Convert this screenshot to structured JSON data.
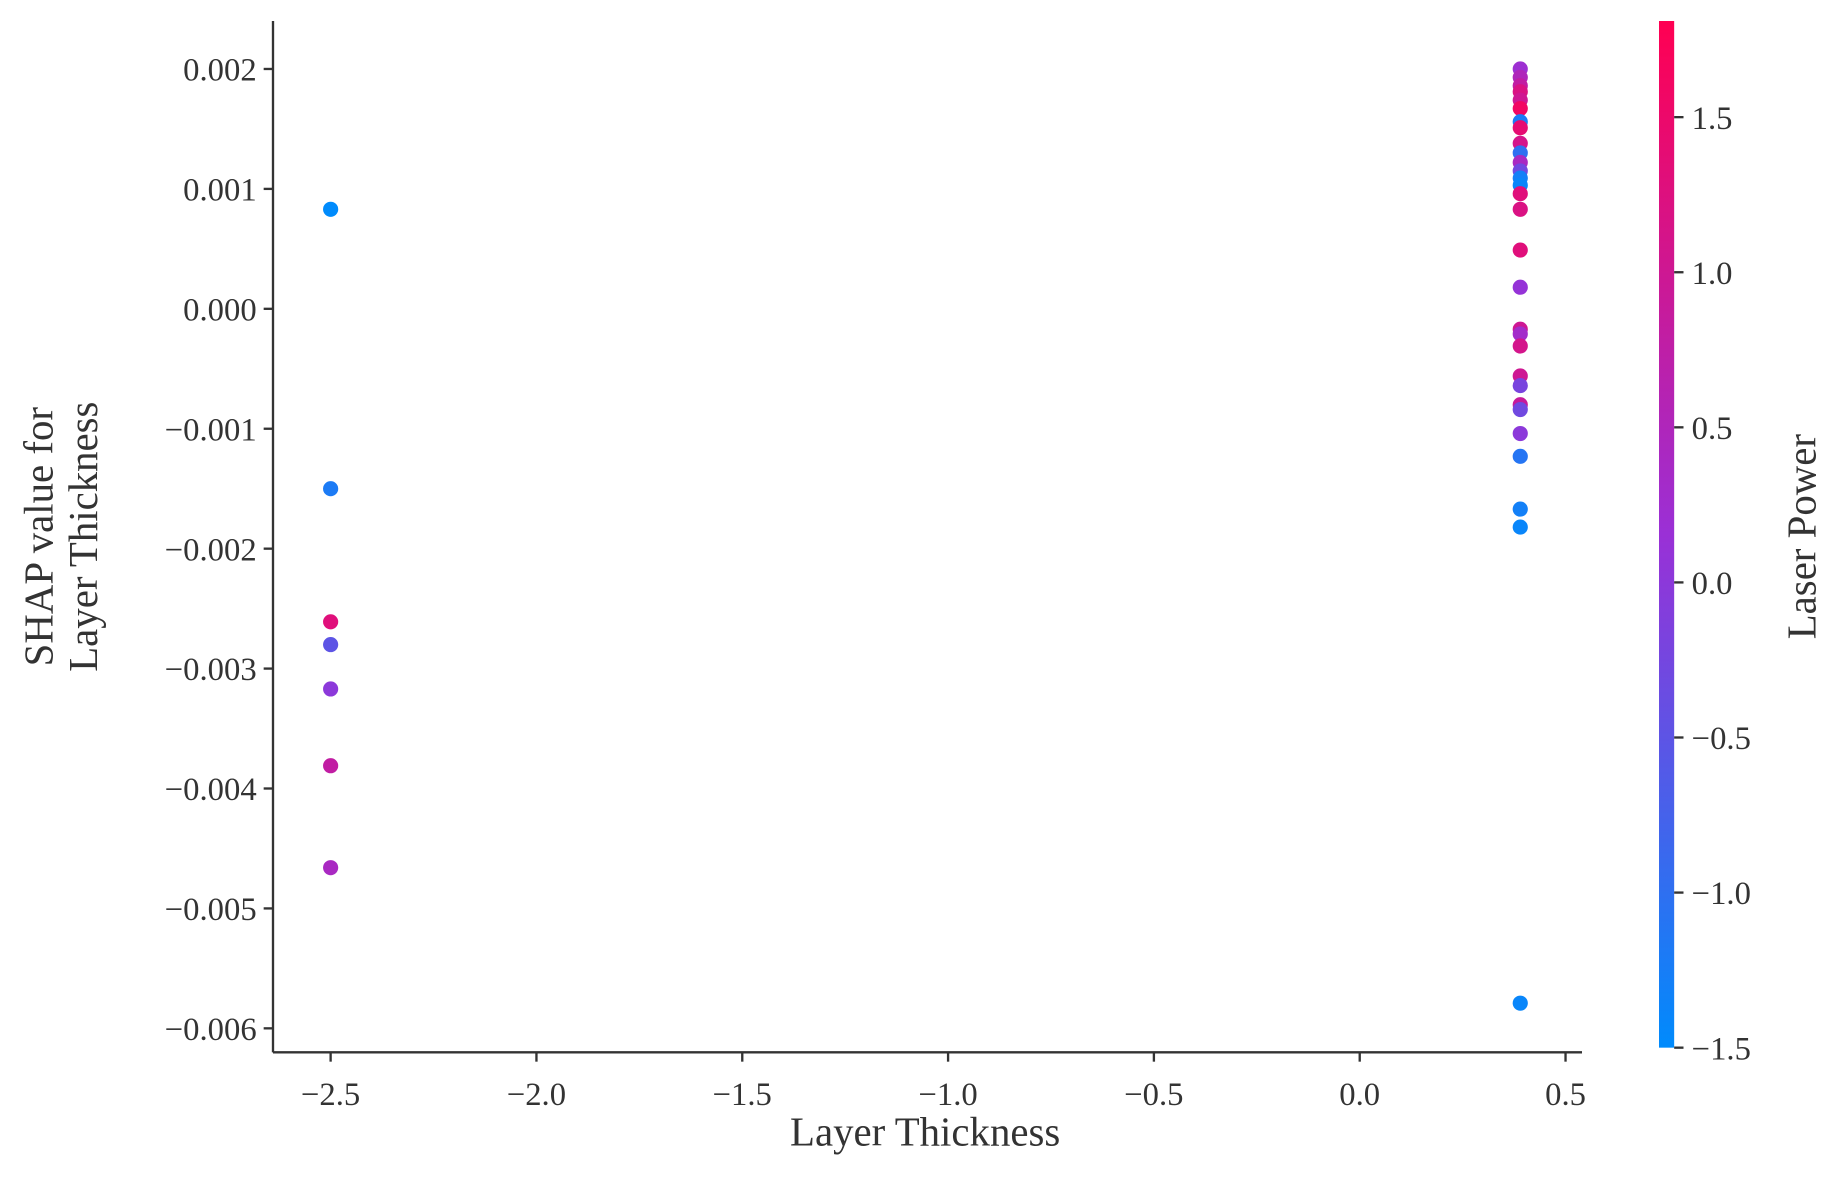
{
  "chart_data": {
    "type": "scatter",
    "xlabel": "Layer Thickness",
    "ylabel": [
      "SHAP value for",
      "Layer Thickness"
    ],
    "xlim": [
      -2.64,
      0.54
    ],
    "ylim": [
      -0.0062,
      0.0024
    ],
    "xticks": [
      {
        "value": -2.5,
        "label": "−2.5"
      },
      {
        "value": -2.0,
        "label": "−2.0"
      },
      {
        "value": -1.5,
        "label": "−1.5"
      },
      {
        "value": -1.0,
        "label": "−1.0"
      },
      {
        "value": -0.5,
        "label": "−0.5"
      },
      {
        "value": 0.0,
        "label": "0.0"
      },
      0.5
    ],
    "yticks": [
      {
        "value": -0.006,
        "label": "−0.006"
      },
      {
        "value": -0.005,
        "label": "−0.005"
      },
      {
        "value": -0.004,
        "label": "−0.004"
      },
      {
        "value": -0.003,
        "label": "−0.003"
      },
      {
        "value": -0.002,
        "label": "−0.002"
      },
      {
        "value": -0.001,
        "label": "−0.001"
      },
      {
        "value": 0.0,
        "label": "0.000"
      },
      0.001,
      0.002
    ],
    "series": [
      {
        "x": [
          -2.5,
          -2.5,
          -2.5,
          -2.5,
          -2.5,
          -2.5,
          -2.5,
          0.39,
          0.39,
          0.39,
          0.39,
          0.39,
          0.39,
          0.39,
          0.39,
          0.39,
          0.39,
          0.39,
          0.39,
          0.39,
          0.39,
          0.39,
          0.39,
          0.39,
          0.39,
          0.39,
          0.39,
          0.39,
          0.39,
          0.39,
          0.39,
          0.39,
          0.39,
          0.39,
          0.39,
          0.39,
          0.39
        ],
        "values": [
          0.00083,
          -0.0015,
          -0.00261,
          -0.0028,
          -0.00317,
          -0.00381,
          -0.00466,
          0.002,
          0.00193,
          0.00186,
          0.00181,
          0.00174,
          0.00167,
          0.00156,
          0.00151,
          0.00138,
          0.0013,
          0.00122,
          0.00115,
          0.00109,
          0.00103,
          0.00096,
          0.00083,
          0.00049,
          0.00018,
          -0.00017,
          -0.00021,
          -0.00031,
          -0.00056,
          -0.00064,
          -0.0008,
          -0.00084,
          -0.00104,
          -0.00123,
          -0.00167,
          -0.00182,
          -0.00579
        ],
        "color_values": [
          -1.5,
          -1.2,
          1.3,
          -0.5,
          0.0,
          0.8,
          0.4,
          0.2,
          0.5,
          0.8,
          1.2,
          1.0,
          1.6,
          -1.2,
          1.4,
          1.1,
          -1.0,
          0.4,
          -0.3,
          -1.3,
          -1.4,
          1.3,
          1.2,
          1.3,
          0.1,
          1.0,
          0.3,
          1.1,
          1.0,
          -0.2,
          0.9,
          -0.3,
          0.0,
          -1.1,
          -1.3,
          -1.4,
          -1.4
        ]
      }
    ],
    "colorbar": {
      "label": "Laser Power",
      "lim": [
        -1.5,
        1.81
      ],
      "ticks": [
        {
          "value": -1.5,
          "label": "−1.5"
        },
        {
          "value": -1.0,
          "label": "−1.0"
        },
        {
          "value": -0.5,
          "label": "−0.5"
        },
        {
          "value": 0.0,
          "label": "0.0"
        },
        0.5,
        {
          "value": 1.0,
          "label": "1.0"
        },
        1.5
      ],
      "colors": [
        "#008bfc",
        "#9a30d6",
        "#ff0052"
      ]
    }
  }
}
